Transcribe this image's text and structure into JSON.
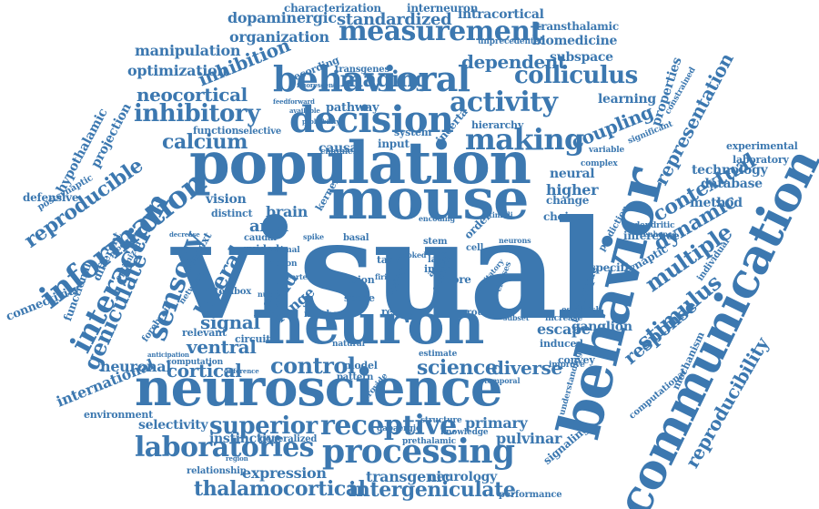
{
  "colors": {
    "word": "#3c78b0",
    "background": "#ffffff"
  },
  "words": [
    "visual",
    "mouse",
    "neuron",
    "population",
    "neuroscience",
    "behavior",
    "communication",
    "behavioral",
    "decision",
    "processing",
    "laboratories",
    "receptive",
    "measurement",
    "information",
    "interaction",
    "sensory",
    "making",
    "activity",
    "inhibitory",
    "calcium",
    "reproducible",
    "geniculate",
    "colliculus",
    "imaging",
    "superior",
    "control",
    "cortical",
    "ventral",
    "signal",
    "lateral",
    "thalamocortical",
    "intergeniculate",
    "expression",
    "transgenic",
    "science",
    "diverse",
    "primary",
    "pulvinar",
    "neurology",
    "response",
    "stimulus",
    "multiple",
    "dynamic",
    "contextual",
    "representation",
    "reproducibility",
    "coupling",
    "dependent",
    "neocortical",
    "inhibition",
    "standardized",
    "organization",
    "dopaminergic",
    "manipulation",
    "optimization",
    "hypothalamic",
    "projection",
    "area",
    "brain",
    "vision",
    "distinct",
    "field",
    "range",
    "causal",
    "input",
    "higher",
    "neural",
    "change",
    "learning",
    "properties",
    "technology",
    "database",
    "method",
    "experimental",
    "laboratory",
    "inference",
    "synaptic",
    "specific",
    "technique",
    "choice",
    "escape",
    "ganglion",
    "induced",
    "signaling",
    "mechanism",
    "computational",
    "individual",
    "international",
    "environment",
    "selectivity",
    "instinctive",
    "generalized",
    "relationship",
    "neuronal",
    "connectivity",
    "functional",
    "different",
    "context",
    "relevant",
    "circuit",
    "forebrain",
    "characterization",
    "interneuron",
    "intracortical",
    "transthalamic",
    "biomedicine",
    "subspace",
    "unprecedented",
    "transgenes",
    "recording",
    "feedforward",
    "pathway",
    "selective",
    "function",
    "system",
    "incerta",
    "hierarchy",
    "kernel",
    "channel",
    "defensive",
    "postsynaptic",
    "caudal",
    "guided",
    "animal",
    "lesion",
    "scene",
    "model",
    "pattern",
    "natural",
    "structure",
    "gabaergic",
    "knowledge",
    "prethalamic",
    "convey",
    "improve",
    "complex",
    "variable",
    "significant",
    "constrained",
    "dendritic",
    "enhance",
    "prediction",
    "increase",
    "establish",
    "number",
    "result",
    "ground",
    "stem",
    "zona",
    "layer",
    "cell",
    "basal",
    "task",
    "inter",
    "order",
    "areal",
    "more",
    "performance",
    "understanding",
    "provide",
    "estimate",
    "toolbox",
    "computation",
    "difference",
    "anticipation",
    "spike",
    "action",
    "evoked",
    "excitatory",
    "feature",
    "classes",
    "cortex",
    "firing",
    "subset",
    "stimuli",
    "spatial",
    "procedure",
    "decrease",
    "optimized",
    "network",
    "nuclei",
    "probability",
    "available",
    "fluorescent",
    "region",
    "neurons",
    "encoding",
    "temporal"
  ]
}
